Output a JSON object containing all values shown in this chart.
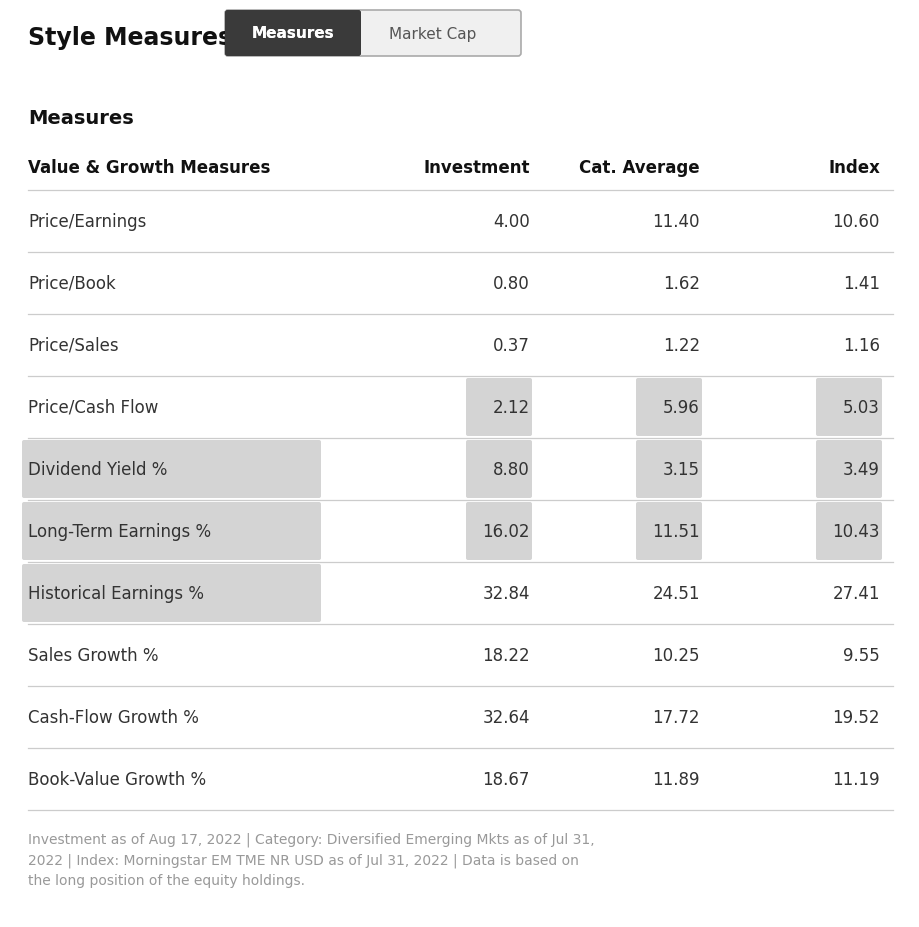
{
  "title": "Style Measures",
  "tab_active": "Measures",
  "tab_inactive": "Market Cap",
  "section_title": "Measures",
  "col_headers": [
    "Value & Growth Measures",
    "Investment",
    "Cat. Average",
    "Index"
  ],
  "rows": [
    {
      "label": "Price/Earnings",
      "investment": "4.00",
      "cat_avg": "11.40",
      "index": "10.60",
      "label_bg": false,
      "inv_bg": false,
      "cat_bg": false,
      "idx_bg": false
    },
    {
      "label": "Price/Book",
      "investment": "0.80",
      "cat_avg": "1.62",
      "index": "1.41",
      "label_bg": false,
      "inv_bg": false,
      "cat_bg": false,
      "idx_bg": false
    },
    {
      "label": "Price/Sales",
      "investment": "0.37",
      "cat_avg": "1.22",
      "index": "1.16",
      "label_bg": false,
      "inv_bg": false,
      "cat_bg": false,
      "idx_bg": false
    },
    {
      "label": "Price/Cash Flow",
      "investment": "2.12",
      "cat_avg": "5.96",
      "index": "5.03",
      "label_bg": false,
      "inv_bg": true,
      "cat_bg": true,
      "idx_bg": true
    },
    {
      "label": "Dividend Yield %",
      "investment": "8.80",
      "cat_avg": "3.15",
      "index": "3.49",
      "label_bg": true,
      "inv_bg": true,
      "cat_bg": true,
      "idx_bg": true
    },
    {
      "label": "Long-Term Earnings %",
      "investment": "16.02",
      "cat_avg": "11.51",
      "index": "10.43",
      "label_bg": true,
      "inv_bg": true,
      "cat_bg": true,
      "idx_bg": true
    },
    {
      "label": "Historical Earnings %",
      "investment": "32.84",
      "cat_avg": "24.51",
      "index": "27.41",
      "label_bg": true,
      "inv_bg": false,
      "cat_bg": false,
      "idx_bg": false
    },
    {
      "label": "Sales Growth %",
      "investment": "18.22",
      "cat_avg": "10.25",
      "index": "9.55",
      "label_bg": false,
      "inv_bg": false,
      "cat_bg": false,
      "idx_bg": false
    },
    {
      "label": "Cash-Flow Growth %",
      "investment": "32.64",
      "cat_avg": "17.72",
      "index": "19.52",
      "label_bg": false,
      "inv_bg": false,
      "cat_bg": false,
      "idx_bg": false
    },
    {
      "label": "Book-Value Growth %",
      "investment": "18.67",
      "cat_avg": "11.89",
      "index": "11.19",
      "label_bg": false,
      "inv_bg": false,
      "cat_bg": false,
      "idx_bg": false
    }
  ],
  "footnote": "Investment as of Aug 17, 2022 | Category: Diversified Emerging Mkts as of Jul 31,\n2022 | Index: Morningstar EM TME NR USD as of Jul 31, 2022 | Data is based on\nthe long position of the equity holdings.",
  "bg_color": "#ffffff",
  "highlight_bg": "#d4d4d4",
  "separator_color": "#cccccc",
  "text_color": "#333333",
  "footnote_color": "#999999",
  "tab_active_bg": "#3a3a3a",
  "tab_active_text": "#ffffff",
  "tab_inactive_bg": "#f0f0f0",
  "tab_inactive_text": "#555555",
  "tab_border": "#aaaaaa"
}
